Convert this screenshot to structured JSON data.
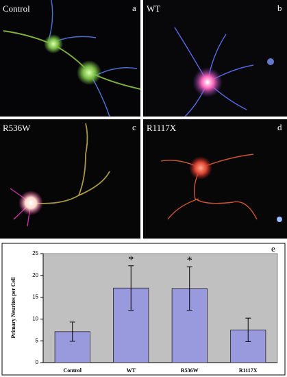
{
  "panels": [
    {
      "name": "Control",
      "letter": "a"
    },
    {
      "name": "WT",
      "letter": "b"
    },
    {
      "name": "R536W",
      "letter": "c"
    },
    {
      "name": "R1117X",
      "letter": "d"
    }
  ],
  "chart_data": {
    "type": "bar",
    "panel_label": "e",
    "y_label": "Primary Neurites per Cell",
    "categories": [
      "Control",
      "WT",
      "R536W",
      "R1117X"
    ],
    "values": [
      7.1,
      17.1,
      17.0,
      7.5
    ],
    "errors": [
      2.2,
      5.1,
      5.0,
      2.7
    ],
    "color": "#9999dd",
    "annotations": [
      {
        "text": "*",
        "category": 1
      },
      {
        "text": "*",
        "category": 2
      }
    ],
    "ylim": [
      0,
      25
    ],
    "yticks": [
      0,
      5,
      10,
      15,
      20,
      25
    ]
  }
}
